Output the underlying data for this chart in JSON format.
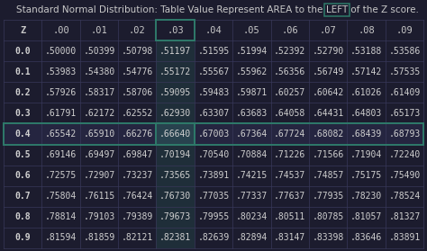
{
  "title_before": "Standard Normal Distribution: Table Value Represent AREA to the ",
  "title_highlight": "LEFT",
  "title_after": " of the Z score.",
  "bg_color": "#1c1c2e",
  "header_text_color": "#c8c8c8",
  "cell_text_color": "#d0d0d0",
  "highlight_col": 4,
  "highlight_row": 4,
  "columns": [
    "Z",
    ".00",
    ".01",
    ".02",
    ".03",
    ".04",
    ".05",
    ".06",
    ".07",
    ".08",
    ".09"
  ],
  "rows": [
    [
      "0.0",
      ".50000",
      ".50399",
      ".50798",
      ".51197",
      ".51595",
      ".51994",
      ".52392",
      ".52790",
      ".53188",
      ".53586"
    ],
    [
      "0.1",
      ".53983",
      ".54380",
      ".54776",
      ".55172",
      ".55567",
      ".55962",
      ".56356",
      ".56749",
      ".57142",
      ".57535"
    ],
    [
      "0.2",
      ".57926",
      ".58317",
      ".58706",
      ".59095",
      ".59483",
      ".59871",
      ".60257",
      ".60642",
      ".61026",
      ".61409"
    ],
    [
      "0.3",
      ".61791",
      ".62172",
      ".62552",
      ".62930",
      ".63307",
      ".63683",
      ".64058",
      ".64431",
      ".64803",
      ".65173"
    ],
    [
      "0.4",
      ".65542",
      ".65910",
      ".66276",
      ".66640",
      ".67003",
      ".67364",
      ".67724",
      ".68082",
      ".68439",
      ".68793"
    ],
    [
      "0.5",
      ".69146",
      ".69497",
      ".69847",
      ".70194",
      ".70540",
      ".70884",
      ".71226",
      ".71566",
      ".71904",
      ".72240"
    ],
    [
      "0.6",
      ".72575",
      ".72907",
      ".73237",
      ".73565",
      ".73891",
      ".74215",
      ".74537",
      ".74857",
      ".75175",
      ".75490"
    ],
    [
      "0.7",
      ".75804",
      ".76115",
      ".76424",
      ".76730",
      ".77035",
      ".77337",
      ".77637",
      ".77935",
      ".78230",
      ".78524"
    ],
    [
      "0.8",
      ".78814",
      ".79103",
      ".79389",
      ".79673",
      ".79955",
      ".80234",
      ".80511",
      ".80785",
      ".81057",
      ".81327"
    ],
    [
      "0.9",
      ".81594",
      ".81859",
      ".82121",
      ".82381",
      ".82639",
      ".82894",
      ".83147",
      ".83398",
      ".83646",
      ".83891"
    ]
  ],
  "grid_color": "#38385a",
  "highlight_box_color": "#2e7a6a",
  "highlight_row_bg": "#252540",
  "title_fontsize": 7.5,
  "cell_fontsize": 7.0,
  "header_fontsize": 7.5
}
